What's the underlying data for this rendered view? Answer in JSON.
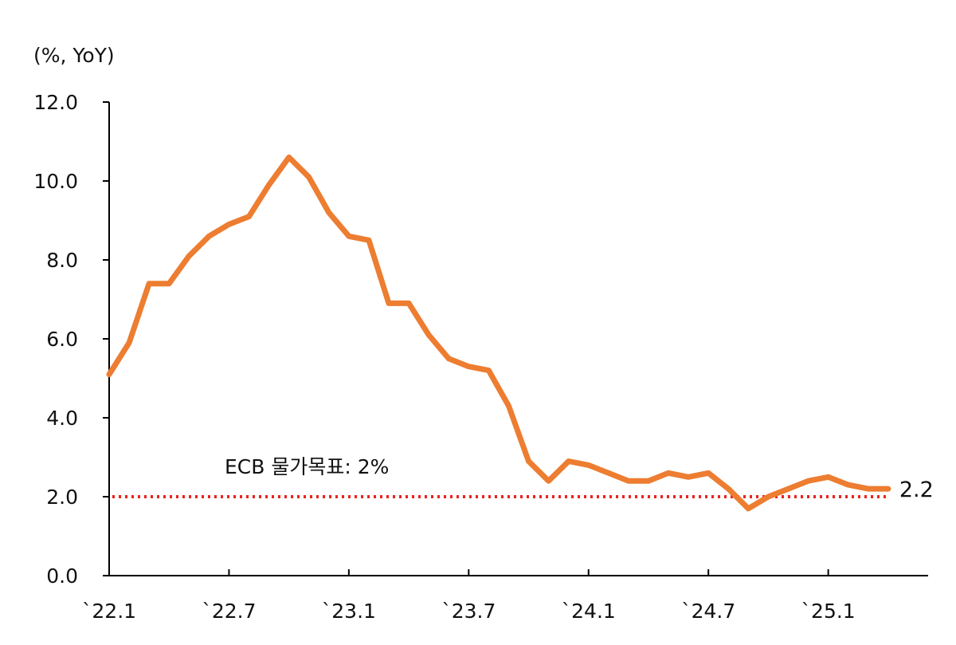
{
  "chart_data": {
    "type": "line",
    "unit_label": "(%, YoY)",
    "y_ticks": [
      "0.0",
      "2.0",
      "4.0",
      "6.0",
      "8.0",
      "10.0",
      "12.0"
    ],
    "ylim": [
      0,
      12
    ],
    "x_ticks": [
      "`22.1",
      "`22.7",
      "`23.1",
      "`23.7",
      "`24.1",
      "`24.7",
      "`25.1"
    ],
    "x_tick_months": [
      0,
      6,
      12,
      18,
      24,
      30,
      36
    ],
    "x_months_visible": 41,
    "series": [
      {
        "color": "#ED7D31",
        "values": [
          5.1,
          5.9,
          7.4,
          7.4,
          8.1,
          8.6,
          8.9,
          9.1,
          9.9,
          10.6,
          10.1,
          9.2,
          8.6,
          8.5,
          6.9,
          6.9,
          6.1,
          5.5,
          5.3,
          5.2,
          4.3,
          2.9,
          2.4,
          2.9,
          2.8,
          2.6,
          2.4,
          2.4,
          2.6,
          2.5,
          2.6,
          2.2,
          1.7,
          2.0,
          2.2,
          2.4,
          2.5,
          2.3,
          2.2,
          2.2
        ],
        "end_label": "2.2"
      }
    ],
    "reference_line": {
      "value": 2.0,
      "label": "ECB 물가목표: 2%",
      "color": "#E8231F"
    },
    "grid": false,
    "legend": "none"
  }
}
